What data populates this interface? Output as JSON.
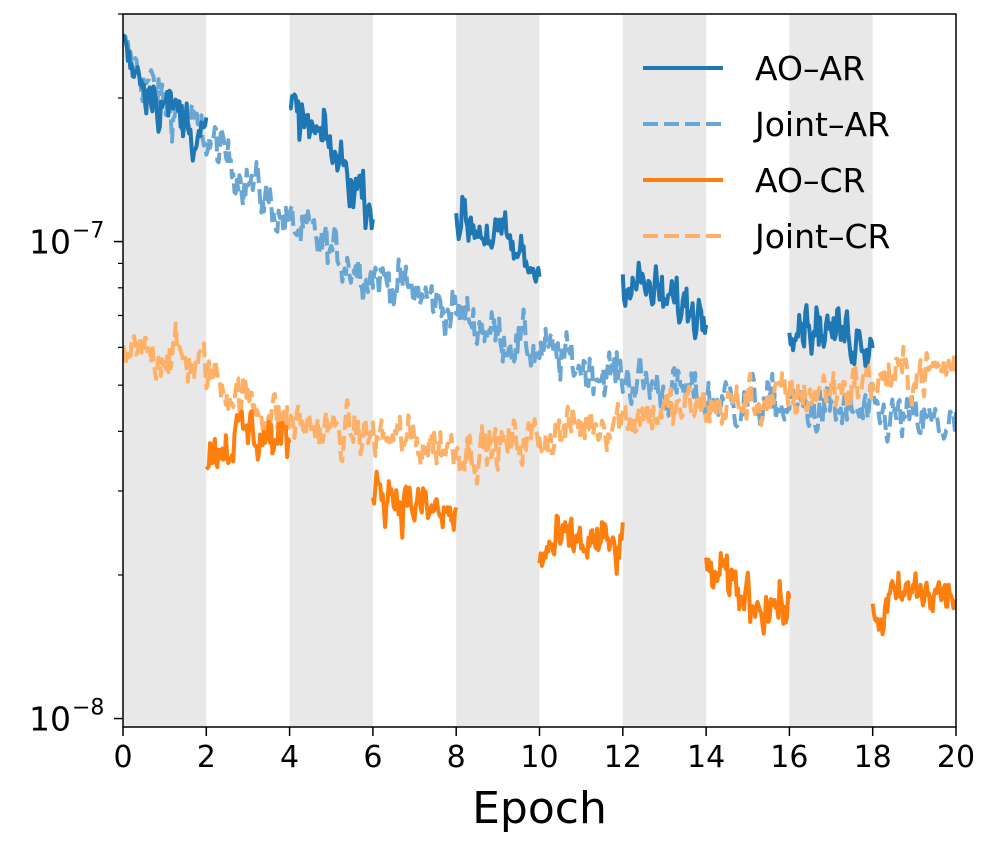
{
  "chart_data": {
    "type": "line",
    "title": "",
    "xlabel": "Epoch",
    "ylabel": "",
    "xlim": [
      0,
      20
    ],
    "ylim": [
      9.6e-09,
      3e-07
    ],
    "yscale": "log",
    "x_ticks": [
      0,
      2,
      4,
      6,
      8,
      10,
      12,
      14,
      16,
      18,
      20
    ],
    "x_tick_labels": [
      "0",
      "2",
      "4",
      "6",
      "8",
      "10",
      "12",
      "14",
      "16",
      "18",
      "20"
    ],
    "y_major_ticks": [
      {
        "value": 1e-07,
        "base": "10",
        "exponent": "−7"
      },
      {
        "value": 1e-08,
        "base": "10",
        "exponent": "−8"
      }
    ],
    "shaded_bands": [
      [
        0,
        2
      ],
      [
        4,
        6
      ],
      [
        8,
        10
      ],
      [
        12,
        14
      ],
      [
        16,
        18
      ]
    ],
    "shade_color": "#e8e8e8",
    "legend_position": "top-right",
    "series": [
      {
        "name": "AO–AR",
        "color": "#1f77b4",
        "style": "solid",
        "segments": [
          {
            "x": [
              0,
              0.5,
              1.0,
              1.5,
              2.0
            ],
            "y": [
              2.6e-07,
              2.2e-07,
              1.95e-07,
              1.8e-07,
              1.65e-07
            ]
          },
          {
            "x": [
              4.0,
              4.5,
              5.0,
              5.5,
              6.0
            ],
            "y": [
              1.9e-07,
              1.7e-07,
              1.55e-07,
              1.35e-07,
              1.2e-07
            ]
          },
          {
            "x": [
              8.0,
              8.5,
              9.0,
              9.5,
              10.0
            ],
            "y": [
              1.12e-07,
              1.08e-07,
              1.02e-07,
              9.3e-08,
              8.6e-08
            ]
          },
          {
            "x": [
              12.0,
              12.5,
              13.0,
              13.5,
              14.0
            ],
            "y": [
              8.6e-08,
              8e-08,
              7.5e-08,
              7.3e-08,
              7.1e-08
            ]
          },
          {
            "x": [
              16.0,
              16.5,
              17.0,
              17.5,
              18.0
            ],
            "y": [
              7.2e-08,
              6.8e-08,
              6.5e-08,
              6.4e-08,
              6.3e-08
            ]
          }
        ]
      },
      {
        "name": "Joint–AR",
        "color": "#6aa6d4",
        "style": "dashed",
        "segments": [
          {
            "x": [
              0,
              1,
              2,
              3,
              4,
              5,
              6,
              7,
              8,
              9,
              10,
              11,
              12,
              13,
              14,
              15,
              16,
              17,
              18,
              19,
              20
            ],
            "y": [
              2.5e-07,
              1.95e-07,
              1.65e-07,
              1.35e-07,
              1.08e-07,
              9.5e-08,
              8.6e-08,
              7.8e-08,
              7.1e-08,
              6.4e-08,
              5.9e-08,
              5.5e-08,
              5.2e-08,
              4.9e-08,
              4.7e-08,
              4.6e-08,
              4.5e-08,
              4.4e-08,
              4.3e-08,
              4.2e-08,
              4.1e-08
            ]
          }
        ]
      },
      {
        "name": "AO–CR",
        "color": "#ff7f0e",
        "style": "solid",
        "segments": [
          {
            "x": [
              2.0,
              2.5,
              3.0,
              3.5,
              4.0
            ],
            "y": [
              3.6e-08,
              3.8e-08,
              4e-08,
              3.9e-08,
              3.7e-08
            ]
          },
          {
            "x": [
              6.0,
              6.5,
              7.0,
              7.5,
              8.0
            ],
            "y": [
              3.2e-08,
              2.95e-08,
              2.8e-08,
              2.7e-08,
              2.6e-08
            ]
          },
          {
            "x": [
              10.0,
              10.5,
              11.0,
              11.5,
              12.0
            ],
            "y": [
              2.2e-08,
              2.3e-08,
              2.35e-08,
              2.3e-08,
              2.25e-08
            ]
          },
          {
            "x": [
              14.0,
              14.5,
              15.0,
              15.5,
              16.0
            ],
            "y": [
              2.1e-08,
              1.9e-08,
              1.8e-08,
              1.75e-08,
              1.7e-08
            ]
          },
          {
            "x": [
              18.0,
              18.5,
              19.0,
              19.5,
              20.0
            ],
            "y": [
              1.6e-08,
              1.75e-08,
              1.85e-08,
              1.8e-08,
              1.8e-08
            ]
          }
        ]
      },
      {
        "name": "Joint–CR",
        "color": "#ffb067",
        "style": "dashed",
        "segments": [
          {
            "x": [
              0,
              1,
              2,
              3,
              4,
              5,
              6,
              7,
              8,
              9,
              10,
              11,
              12,
              13,
              14,
              15,
              16,
              17,
              18,
              19,
              20
            ],
            "y": [
              5.6e-08,
              5.9e-08,
              5.4e-08,
              4.6e-08,
              4.2e-08,
              4e-08,
              3.9e-08,
              3.8e-08,
              3.7e-08,
              3.7e-08,
              3.9e-08,
              4.1e-08,
              4.3e-08,
              4.4e-08,
              4.5e-08,
              4.6e-08,
              4.7e-08,
              4.9e-08,
              5.1e-08,
              5.3e-08,
              5.5e-08
            ]
          }
        ]
      }
    ]
  }
}
